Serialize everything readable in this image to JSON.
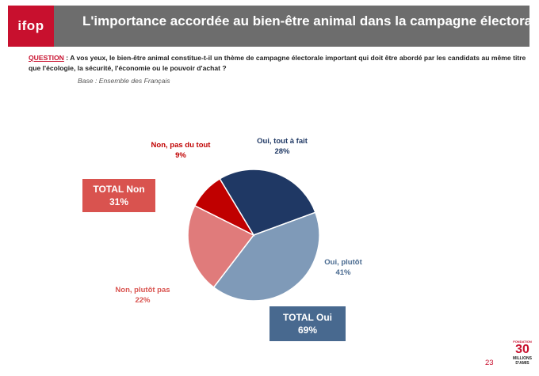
{
  "header": {
    "logo": "ifop",
    "title": "L'importance accordée au bien-être animal dans la campagne électorale"
  },
  "question": {
    "label": "QUESTION",
    "text": " : A vos yeux, le bien-être animal constitue-t-il un thème de campagne électorale important qui doit être abordé par les candidats au même titre que l'écologie, la sécurité, l'économie ou le pouvoir d'achat ?"
  },
  "base": "Base : Ensemble des Français",
  "chart_data": {
    "type": "pie",
    "title": "L'importance accordée au bien-être animal dans la campagne électorale",
    "slices": [
      {
        "name": "Oui, tout à fait",
        "value": 28,
        "value_label": "28%",
        "color": "#1f3864"
      },
      {
        "name": "Oui, plutôt",
        "value": 41,
        "value_label": "41%",
        "color": "#7f9ab8"
      },
      {
        "name": "Non, plutôt pas",
        "value": 22,
        "value_label": "22%",
        "color": "#e07b7b"
      },
      {
        "name": "Non, pas du tout",
        "value": 9,
        "value_label": "9%",
        "color": "#c00000"
      }
    ],
    "totals": [
      {
        "name": "TOTAL Non",
        "value_label": "31%"
      },
      {
        "name": "TOTAL Oui",
        "value_label": "69%"
      }
    ]
  },
  "colors": {
    "brand_red": "#c8102e",
    "header_gray": "#6d6d6d",
    "label_oui": "#1f3864",
    "label_oui_plutot": "#48698f",
    "label_non_plutot": "#d9534f",
    "label_non": "#c00000"
  },
  "footer": {
    "page_number": "23",
    "brand_top": "FONDATION",
    "brand_mid": "30",
    "brand_bottom": "MILLIONS D'AMIS"
  }
}
